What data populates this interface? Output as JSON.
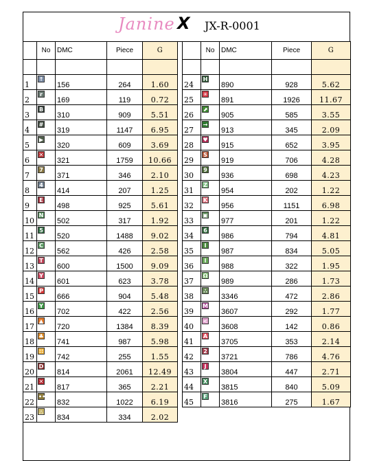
{
  "header": {
    "logo_text": "Janine",
    "logo_mark": "X",
    "code": "JX-R-0001"
  },
  "columns": {
    "no": "No",
    "dmc": "DMC",
    "piece": "Piece",
    "g": "G"
  },
  "left_rows": [
    {
      "no": "1",
      "sym": "↑",
      "color": "#7d8ea8",
      "dmc": "156",
      "piece": "264",
      "g": "1.60"
    },
    {
      "no": "2",
      "sym": "r",
      "color": "#6a7a72",
      "dmc": "169",
      "piece": "119",
      "g": "0.72"
    },
    {
      "no": "3",
      "sym": "B",
      "color": "#2f3b34",
      "dmc": "310",
      "piece": "909",
      "g": "5.51"
    },
    {
      "no": "4",
      "sym": "#",
      "color": "#3f4a3e",
      "dmc": "319",
      "piece": "1147",
      "g": "6.95"
    },
    {
      "no": "5",
      "sym": "▶",
      "color": "#4f5e4a",
      "dmc": "320",
      "piece": "609",
      "g": "3.69"
    },
    {
      "no": "6",
      "sym": "✕",
      "color": "#b8373a",
      "dmc": "321",
      "piece": "1759",
      "g": "10.66"
    },
    {
      "no": "7",
      "sym": "7",
      "color": "#8b7a44",
      "dmc": "371",
      "piece": "346",
      "g": "2.10"
    },
    {
      "no": "8",
      "sym": "4",
      "color": "#6f7f90",
      "dmc": "414",
      "piece": "207",
      "g": "1.25"
    },
    {
      "no": "9",
      "sym": "E",
      "color": "#a42f3b",
      "dmc": "498",
      "piece": "925",
      "g": "5.61"
    },
    {
      "no": "10",
      "sym": "N",
      "color": "#4e8a55",
      "dmc": "502",
      "piece": "317",
      "g": "1.92"
    },
    {
      "no": "11",
      "sym": "5",
      "color": "#2f6a40",
      "dmc": "520",
      "piece": "1488",
      "g": "9.02"
    },
    {
      "no": "12",
      "sym": "C",
      "color": "#5a9a62",
      "dmc": "562",
      "piece": "426",
      "g": "2.58"
    },
    {
      "no": "13",
      "sym": "T",
      "color": "#c24459",
      "dmc": "600",
      "piece": "1500",
      "g": "9.09"
    },
    {
      "no": "14",
      "sym": "Y",
      "color": "#d04a62",
      "dmc": "601",
      "piece": "623",
      "g": "3.78"
    },
    {
      "no": "15",
      "sym": "P",
      "color": "#d63636",
      "dmc": "666",
      "piece": "904",
      "g": "5.48"
    },
    {
      "no": "16",
      "sym": "Y",
      "color": "#3c9a44",
      "dmc": "702",
      "piece": "422",
      "g": "2.56"
    },
    {
      "no": "17",
      "sym": "▲",
      "color": "#e4792a",
      "dmc": "720",
      "piece": "1384",
      "g": "8.39"
    },
    {
      "no": "18",
      "sym": "♣",
      "color": "#e08e2a",
      "dmc": "741",
      "piece": "987",
      "g": "5.98"
    },
    {
      "no": "19",
      "sym": "∷",
      "color": "#f0b23a",
      "dmc": "742",
      "piece": "255",
      "g": "1.55"
    },
    {
      "no": "20",
      "sym": "D",
      "color": "#8c2a2a",
      "dmc": "814",
      "piece": "2061",
      "g": "12.49"
    },
    {
      "no": "21",
      "sym": "✕",
      "color": "#b3262e",
      "dmc": "817",
      "piece": "365",
      "g": "2.21"
    },
    {
      "no": "22",
      "sym": "••",
      "color": "#8c7a3a",
      "dmc": "832",
      "piece": "1022",
      "g": "6.19"
    },
    {
      "no": "23",
      "sym": "△",
      "color": "#c7b467",
      "dmc": "834",
      "piece": "334",
      "g": "2.02"
    }
  ],
  "right_rows": [
    {
      "no": "24",
      "sym": "H",
      "color": "#2e5a36",
      "dmc": "890",
      "piece": "928",
      "g": "5.62"
    },
    {
      "no": "25",
      "sym": "✳",
      "color": "#d23341",
      "dmc": "891",
      "piece": "1926",
      "g": "11.67"
    },
    {
      "no": "26",
      "sym": "⬈",
      "color": "#3f8a32",
      "dmc": "905",
      "piece": "585",
      "g": "3.55"
    },
    {
      "no": "27",
      "sym": "→",
      "color": "#2f7a30",
      "dmc": "913",
      "piece": "345",
      "g": "2.09"
    },
    {
      "no": "28",
      "sym": "♥",
      "color": "#b02a55",
      "dmc": "915",
      "piece": "652",
      "g": "3.95"
    },
    {
      "no": "29",
      "sym": "S",
      "color": "#b5502f",
      "dmc": "919",
      "piece": "706",
      "g": "4.28"
    },
    {
      "no": "30",
      "sym": "9",
      "color": "#4a6a34",
      "dmc": "936",
      "piece": "698",
      "g": "4.23"
    },
    {
      "no": "31",
      "sym": "Z",
      "color": "#7fbf83",
      "dmc": "954",
      "piece": "202",
      "g": "1.22"
    },
    {
      "no": "32",
      "sym": "K",
      "color": "#e06a78",
      "dmc": "956",
      "piece": "1151",
      "g": "6.98"
    },
    {
      "no": "33",
      "sym": "▣",
      "color": "#5c8a56",
      "dmc": "977",
      "piece": "201",
      "g": "1.22"
    },
    {
      "no": "34",
      "sym": "6",
      "color": "#2f6a3a",
      "dmc": "986",
      "piece": "794",
      "g": "4.81"
    },
    {
      "no": "35",
      "sym": "I",
      "color": "#4a8a3e",
      "dmc": "987",
      "piece": "834",
      "g": "5.05"
    },
    {
      "no": "36",
      "sym": "l",
      "color": "#6aa85a",
      "dmc": "988",
      "piece": "322",
      "g": "1.95"
    },
    {
      "no": "37",
      "sym": "Ω",
      "color": "#7ab86a",
      "dmc": "989",
      "piece": "286",
      "g": "1.73"
    },
    {
      "no": "38",
      "sym": "∴",
      "color": "#6a8a5a",
      "dmc": "3346",
      "piece": "472",
      "g": "2.86"
    },
    {
      "no": "39",
      "sym": "M",
      "color": "#b04a9a",
      "dmc": "3607",
      "piece": "292",
      "g": "1.77"
    },
    {
      "no": "40",
      "sym": "<",
      "color": "#e0a0cc",
      "dmc": "3608",
      "piece": "142",
      "g": "0.86"
    },
    {
      "no": "41",
      "sym": "A",
      "color": "#e04a5a",
      "dmc": "3705",
      "piece": "353",
      "g": "2.14"
    },
    {
      "no": "42",
      "sym": "2",
      "color": "#a33a4a",
      "dmc": "3721",
      "piece": "786",
      "g": "4.76"
    },
    {
      "no": "43",
      "sym": "J",
      "color": "#c2305a",
      "dmc": "3804",
      "piece": "447",
      "g": "2.71"
    },
    {
      "no": "44",
      "sym": "X",
      "color": "#3f8a5a",
      "dmc": "3815",
      "piece": "840",
      "g": "5.09"
    },
    {
      "no": "45",
      "sym": "F",
      "color": "#5aa07a",
      "dmc": "3816",
      "piece": "275",
      "g": "1.67"
    }
  ]
}
